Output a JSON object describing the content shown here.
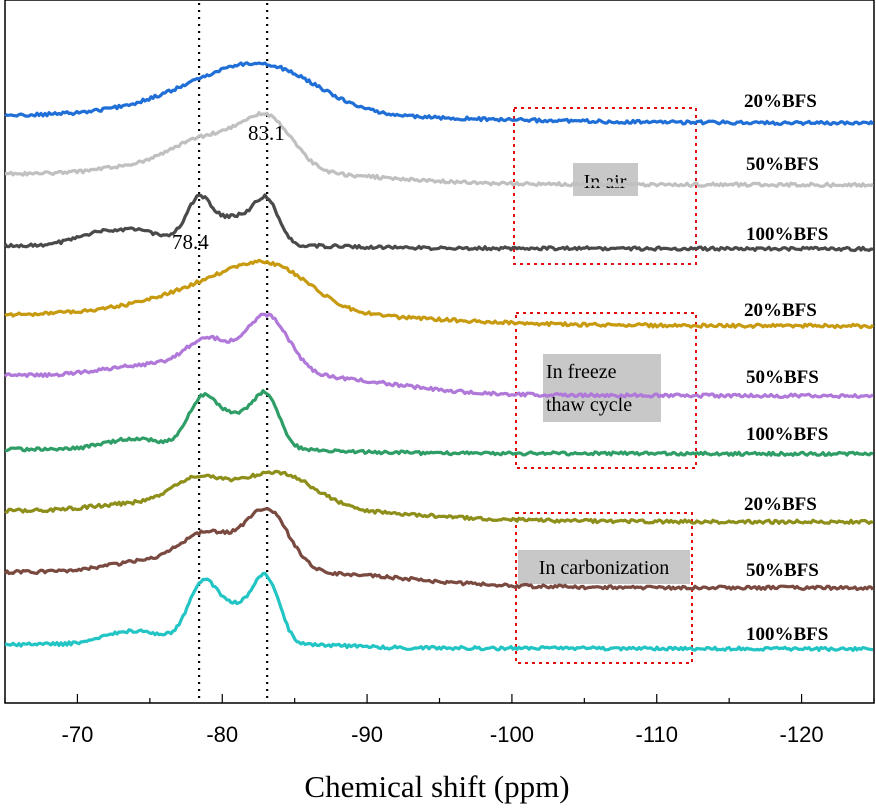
{
  "chart_data": {
    "type": "line",
    "xlabel": "Chemical shift (ppm)",
    "xlim": [
      -65,
      -125
    ],
    "x_ticks": [
      -70,
      -80,
      -90,
      -100,
      -110,
      -120
    ],
    "y_ticks_shown": false,
    "grid": false,
    "legend": "none",
    "reference_lines": [
      {
        "x": -78.4,
        "label": "78.4",
        "style": "dotted"
      },
      {
        "x": -83.1,
        "label": "83.1",
        "style": "dotted"
      }
    ],
    "groups": [
      {
        "label": "In air",
        "series_names": [
          "20%BFS",
          "50%BFS",
          "100%BFS"
        ]
      },
      {
        "label": "In freeze thaw cycle",
        "label_lines": [
          "In freeze",
          "thaw cycle"
        ],
        "series_names": [
          "20%BFS",
          "50%BFS",
          "100%BFS"
        ]
      },
      {
        "label": "In carbonization",
        "series_names": [
          "20%BFS",
          "50%BFS",
          "100%BFS"
        ]
      }
    ],
    "series": [
      {
        "name": "20%BFS",
        "group": "In air",
        "color": "#1f6fd6",
        "baseline": 0.0,
        "peaks": [
          {
            "x": -83.3,
            "h": 0.46,
            "w": 3.6
          },
          {
            "x": -79,
            "h": 0.18,
            "w": 3.5
          },
          {
            "x": -75,
            "h": 0.06,
            "w": 4
          }
        ],
        "tail": {
          "x0": -87,
          "h": 0.06,
          "w": 10
        }
      },
      {
        "name": "50%BFS",
        "group": "In air",
        "color": "#c0c0c0",
        "baseline": 0.0,
        "peaks": [
          {
            "x": -83.1,
            "h": 0.58,
            "w": 1.8
          },
          {
            "x": -79,
            "h": 0.34,
            "w": 2.2
          },
          {
            "x": -75,
            "h": 0.1,
            "w": 3
          }
        ],
        "tail": {
          "x0": -86,
          "h": 0.1,
          "w": 6
        }
      },
      {
        "name": "100%BFS",
        "group": "In air",
        "color": "#4a4a4a",
        "baseline": 0.0,
        "peaks": [
          {
            "x": -78.4,
            "h": 0.48,
            "w": 0.9
          },
          {
            "x": -83.1,
            "h": 0.44,
            "w": 0.85
          },
          {
            "x": -81,
            "h": 0.3,
            "w": 1.3
          },
          {
            "x": -74,
            "h": 0.16,
            "w": 2
          },
          {
            "x": -71,
            "h": 0.08,
            "w": 1.5
          }
        ],
        "tail": {
          "x0": -86,
          "h": 0.02,
          "w": 3
        }
      },
      {
        "name": "20%BFS",
        "group": "In freeze thaw cycle",
        "color": "#c79a10",
        "baseline": 0.0,
        "peaks": [
          {
            "x": -83.6,
            "h": 0.44,
            "w": 2.8
          },
          {
            "x": -79.5,
            "h": 0.24,
            "w": 3.2
          },
          {
            "x": -75,
            "h": 0.08,
            "w": 4
          }
        ],
        "tail": {
          "x0": -87,
          "h": 0.1,
          "w": 8
        }
      },
      {
        "name": "50%BFS",
        "group": "In freeze thaw cycle",
        "color": "#b079d9",
        "baseline": 0.0,
        "peaks": [
          {
            "x": -83.1,
            "h": 0.65,
            "w": 1.5
          },
          {
            "x": -79,
            "h": 0.35,
            "w": 1.5
          },
          {
            "x": -75,
            "h": 0.12,
            "w": 3
          }
        ],
        "tail": {
          "x0": -85.5,
          "h": 0.2,
          "w": 6
        }
      },
      {
        "name": "100%BFS",
        "group": "In freeze thaw cycle",
        "color": "#2e9e66",
        "baseline": 0.0,
        "peaks": [
          {
            "x": -78.6,
            "h": 0.5,
            "w": 1.0
          },
          {
            "x": -83.1,
            "h": 0.5,
            "w": 0.9
          },
          {
            "x": -81,
            "h": 0.34,
            "w": 1.4
          },
          {
            "x": -74,
            "h": 0.12,
            "w": 2
          }
        ],
        "tail": {
          "x0": -86,
          "h": 0.03,
          "w": 3
        }
      },
      {
        "name": "20%BFS",
        "group": "In carbonization",
        "color": "#8e8e1a",
        "baseline": 0.0,
        "peaks": [
          {
            "x": -83.7,
            "h": 0.42,
            "w": 2.6
          },
          {
            "x": -78.3,
            "h": 0.3,
            "w": 1.8
          },
          {
            "x": -74,
            "h": 0.08,
            "w": 3
          }
        ],
        "tail": {
          "x0": -87,
          "h": 0.1,
          "w": 7
        }
      },
      {
        "name": "50%BFS",
        "group": "In carbonization",
        "color": "#7a4a40",
        "baseline": 0.0,
        "peaks": [
          {
            "x": -83.1,
            "h": 0.66,
            "w": 1.5
          },
          {
            "x": -79,
            "h": 0.38,
            "w": 1.8
          },
          {
            "x": -75,
            "h": 0.12,
            "w": 3
          }
        ],
        "tail": {
          "x0": -85.5,
          "h": 0.15,
          "w": 7
        }
      },
      {
        "name": "100%BFS",
        "group": "In carbonization",
        "color": "#22c4c4",
        "baseline": 0.0,
        "peaks": [
          {
            "x": -78.6,
            "h": 0.6,
            "w": 1.0
          },
          {
            "x": -83.1,
            "h": 0.62,
            "w": 0.9
          },
          {
            "x": -81,
            "h": 0.38,
            "w": 1.4
          },
          {
            "x": -74,
            "h": 0.15,
            "w": 2
          }
        ],
        "tail": {
          "x0": -86,
          "h": 0.03,
          "w": 3
        }
      }
    ],
    "group_box_color": "#e01010",
    "group_label_bg": "#c8c8c8",
    "reference_line_color": "#000000"
  }
}
